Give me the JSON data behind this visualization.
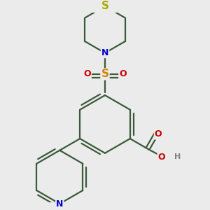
{
  "bg_color": "#ebebeb",
  "bond_color": "#3a5a3a",
  "atom_colors": {
    "N": "#0000cc",
    "O": "#cc0000",
    "S_thio": "#aaaa00",
    "S_sulfonyl": "#cc8800",
    "H": "#808080"
  },
  "bond_width": 1.6,
  "font_size_atom": 9,
  "font_size_S": 10
}
